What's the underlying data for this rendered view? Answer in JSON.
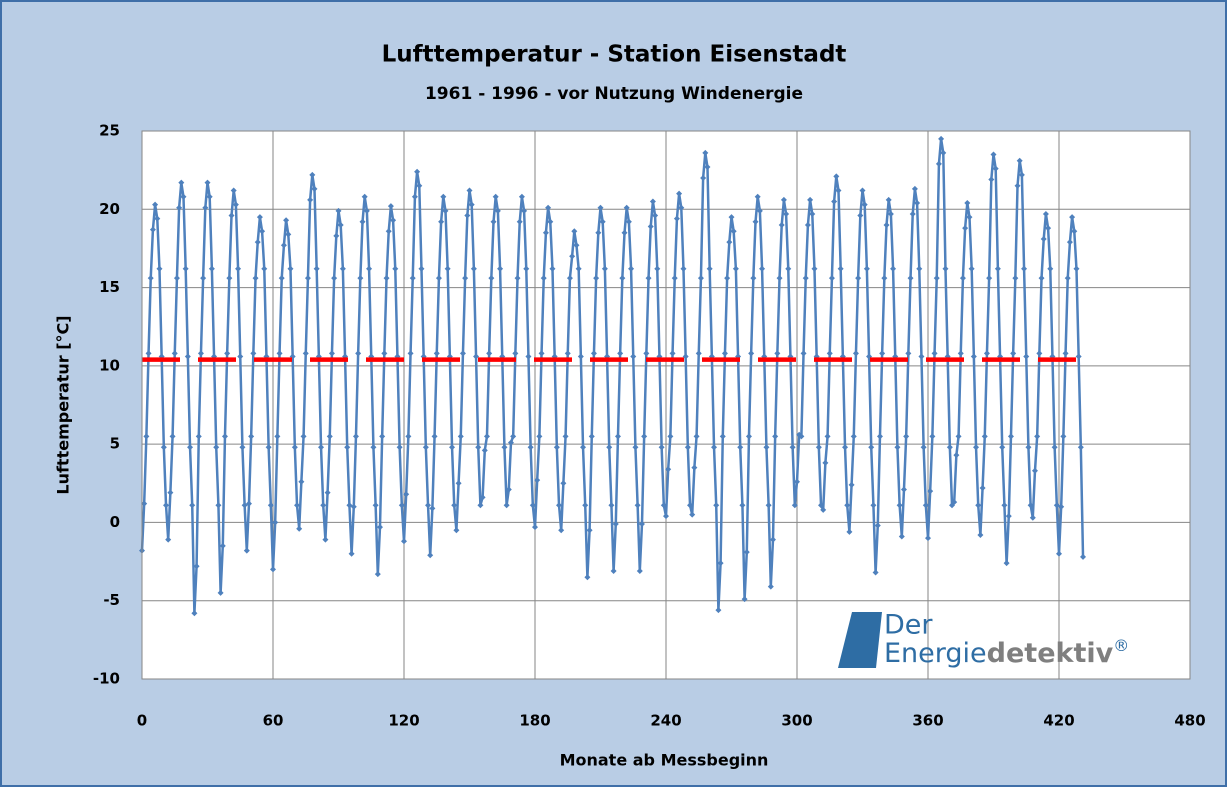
{
  "chart_data": {
    "type": "line",
    "title": "Lufttemperatur - Station Eisenstadt",
    "subtitle": "1961 - 1996 - vor Nutzung  Windenergie",
    "x_label": "Monate ab Messbeginn",
    "y_label": "Lufttemperatur [°C]",
    "xlim": [
      0,
      480
    ],
    "xticks": [
      0,
      60,
      120,
      180,
      240,
      300,
      360,
      420,
      480
    ],
    "ylim": [
      -10,
      25
    ],
    "yticks": [
      -10,
      -5,
      0,
      5,
      10,
      15,
      20,
      25
    ],
    "grid": true,
    "logo": {
      "line1": "Der",
      "word1": "Energie",
      "word2": "detektiv",
      "mark": "®"
    },
    "series": [
      {
        "color": "#4f81bd",
        "x": [
          0,
          1,
          2,
          3,
          4,
          5,
          6,
          7,
          8,
          9,
          10,
          11,
          12,
          13,
          14,
          15,
          16,
          17,
          18,
          19,
          20,
          21,
          22,
          23,
          24,
          25,
          26,
          27,
          28,
          29,
          30,
          31,
          32,
          33,
          34,
          35,
          36,
          37,
          38,
          39,
          40,
          41,
          42,
          43,
          44,
          45,
          46,
          47,
          48,
          49,
          50,
          51,
          52,
          53,
          54,
          55,
          56,
          57,
          58,
          59,
          60,
          61,
          62,
          63,
          64,
          65,
          66,
          67,
          68,
          69,
          70,
          71,
          72,
          73,
          74,
          75,
          76,
          77,
          78,
          79,
          80,
          81,
          82,
          83,
          84,
          85,
          86,
          87,
          88,
          89,
          90,
          91,
          92,
          93,
          94,
          95,
          96,
          97,
          98,
          99,
          100,
          101,
          102,
          103,
          104,
          105,
          106,
          107,
          108,
          109,
          110,
          111,
          112,
          113,
          114,
          115,
          116,
          117,
          118,
          119,
          120,
          121,
          122,
          123,
          124,
          125,
          126,
          127,
          128,
          129,
          130,
          131,
          132,
          133,
          134,
          135,
          136,
          137,
          138,
          139,
          140,
          141,
          142,
          143,
          144,
          145,
          146,
          147,
          148,
          149,
          150,
          151,
          152,
          153,
          154,
          155,
          156,
          157,
          158,
          159,
          160,
          161,
          162,
          163,
          164,
          165,
          166,
          167,
          168,
          169,
          170,
          171,
          172,
          173,
          174,
          175,
          176,
          177,
          178,
          179,
          180,
          181,
          182,
          183,
          184,
          185,
          186,
          187,
          188,
          189,
          190,
          191,
          192,
          193,
          194,
          195,
          196,
          197,
          198,
          199,
          200,
          201,
          202,
          203,
          204,
          205,
          206,
          207,
          208,
          209,
          210,
          211,
          212,
          213,
          214,
          215,
          216,
          217,
          218,
          219,
          220,
          221,
          222,
          223,
          224,
          225,
          226,
          227,
          228,
          229,
          230,
          231,
          232,
          233,
          234,
          235,
          236,
          237,
          238,
          239,
          240,
          241,
          242,
          243,
          244,
          245,
          246,
          247,
          248,
          249,
          250,
          251,
          252,
          253,
          254,
          255,
          256,
          257,
          258,
          259,
          260,
          261,
          262,
          263,
          264,
          265,
          266,
          267,
          268,
          269,
          270,
          271,
          272,
          273,
          274,
          275,
          276,
          277,
          278,
          279,
          280,
          281,
          282,
          283,
          284,
          285,
          286,
          287,
          288,
          289,
          290,
          291,
          292,
          293,
          294,
          295,
          296,
          297,
          298,
          299,
          300,
          301,
          302,
          303,
          304,
          305,
          306,
          307,
          308,
          309,
          310,
          311,
          312,
          313,
          314,
          315,
          316,
          317,
          318,
          319,
          320,
          321,
          322,
          323,
          324,
          325,
          326,
          327,
          328,
          329,
          330,
          331,
          332,
          333,
          334,
          335,
          336,
          337,
          338,
          339,
          340,
          341,
          342,
          343,
          344,
          345,
          346,
          347,
          348,
          349,
          350,
          351,
          352,
          353,
          354,
          355,
          356,
          357,
          358,
          359,
          360,
          361,
          362,
          363,
          364,
          365,
          366,
          367,
          368,
          369,
          370,
          371,
          372,
          373,
          374,
          375,
          376,
          377,
          378,
          379,
          380,
          381,
          382,
          383,
          384,
          385,
          386,
          387,
          388,
          389,
          390,
          391,
          392,
          393,
          394,
          395,
          396,
          397,
          398,
          399,
          400,
          401,
          402,
          403,
          404,
          405,
          406,
          407,
          408,
          409,
          410,
          411,
          412,
          413,
          414,
          415,
          416,
          417,
          418,
          419,
          420,
          421,
          422,
          423,
          424,
          425,
          426,
          427,
          428,
          429,
          430,
          431
        ],
        "values": [
          -1.8,
          1.2,
          5.5,
          10.8,
          15.6,
          18.7,
          20.3,
          19.4,
          16.2,
          10.6,
          4.8,
          1.1,
          -1.1,
          1.9,
          5.5,
          10.8,
          15.6,
          20.1,
          21.7,
          20.8,
          16.2,
          10.6,
          4.8,
          1.1,
          -5.8,
          -2.8,
          5.5,
          10.8,
          15.6,
          20.1,
          21.7,
          20.8,
          16.2,
          10.6,
          4.8,
          1.1,
          -4.5,
          -1.5,
          5.5,
          10.8,
          15.6,
          19.6,
          21.2,
          20.3,
          16.2,
          10.6,
          4.8,
          1.1,
          -1.8,
          1.2,
          5.5,
          10.8,
          15.6,
          17.9,
          19.5,
          18.6,
          16.2,
          10.6,
          4.8,
          1.1,
          -3.0,
          0.0,
          5.5,
          10.8,
          15.6,
          17.7,
          19.3,
          18.4,
          16.2,
          10.6,
          4.8,
          1.1,
          -0.4,
          2.6,
          5.5,
          10.8,
          15.6,
          20.6,
          22.2,
          21.3,
          16.2,
          10.6,
          4.8,
          1.1,
          -1.1,
          1.9,
          5.5,
          10.8,
          15.6,
          18.3,
          19.9,
          19.0,
          16.2,
          10.6,
          4.8,
          1.1,
          -2.0,
          1.0,
          5.5,
          10.8,
          15.6,
          19.2,
          20.8,
          19.9,
          16.2,
          10.6,
          4.8,
          1.1,
          -3.3,
          -0.3,
          5.5,
          10.8,
          15.6,
          18.6,
          20.2,
          19.3,
          16.2,
          10.6,
          4.8,
          1.1,
          -1.2,
          1.8,
          5.5,
          10.8,
          15.6,
          20.8,
          22.4,
          21.5,
          16.2,
          10.6,
          4.8,
          1.1,
          -2.1,
          0.9,
          5.5,
          10.8,
          15.6,
          19.2,
          20.8,
          19.9,
          16.2,
          10.6,
          4.8,
          1.1,
          -0.5,
          2.5,
          5.5,
          10.8,
          15.6,
          19.6,
          21.2,
          20.3,
          16.2,
          10.6,
          4.8,
          1.1,
          1.6,
          4.6,
          5.5,
          10.8,
          15.6,
          19.2,
          20.8,
          19.9,
          16.2,
          10.6,
          4.8,
          1.1,
          2.1,
          5.1,
          5.5,
          10.8,
          15.6,
          19.2,
          20.8,
          19.9,
          16.2,
          10.6,
          4.8,
          1.1,
          -0.3,
          2.7,
          5.5,
          10.8,
          15.6,
          18.5,
          20.1,
          19.2,
          16.2,
          10.6,
          4.8,
          1.1,
          -0.5,
          2.5,
          5.5,
          10.8,
          15.6,
          17.0,
          18.6,
          17.7,
          16.2,
          10.6,
          4.8,
          1.1,
          -3.5,
          -0.5,
          5.5,
          10.8,
          15.6,
          18.5,
          20.1,
          19.2,
          16.2,
          10.6,
          4.8,
          1.1,
          -3.1,
          -0.1,
          5.5,
          10.8,
          15.6,
          18.5,
          20.1,
          19.2,
          16.2,
          10.6,
          4.8,
          1.1,
          -3.1,
          -0.1,
          5.5,
          10.8,
          15.6,
          18.9,
          20.5,
          19.6,
          16.2,
          10.6,
          4.8,
          1.1,
          0.4,
          3.4,
          5.5,
          10.8,
          15.6,
          19.4,
          21.0,
          20.1,
          16.2,
          10.6,
          4.8,
          1.1,
          0.5,
          3.5,
          5.5,
          10.8,
          15.6,
          22.0,
          23.6,
          22.7,
          16.2,
          10.6,
          4.8,
          1.1,
          -5.6,
          -2.6,
          5.5,
          10.8,
          15.6,
          17.9,
          19.5,
          18.6,
          16.2,
          10.6,
          4.8,
          1.1,
          -4.9,
          -1.9,
          5.5,
          10.8,
          15.6,
          19.2,
          20.8,
          19.9,
          16.2,
          10.6,
          4.8,
          1.1,
          -4.1,
          -1.1,
          5.5,
          10.8,
          15.6,
          19.0,
          20.6,
          19.7,
          16.2,
          10.6,
          4.8,
          1.1,
          2.6,
          5.6,
          5.5,
          10.8,
          15.6,
          19.0,
          20.6,
          19.7,
          16.2,
          10.6,
          4.8,
          1.1,
          0.8,
          3.8,
          5.5,
          10.8,
          15.6,
          20.5,
          22.1,
          21.2,
          16.2,
          10.6,
          4.8,
          1.1,
          -0.6,
          2.4,
          5.5,
          10.8,
          15.6,
          19.6,
          21.2,
          20.3,
          16.2,
          10.6,
          4.8,
          1.1,
          -3.2,
          -0.2,
          5.5,
          10.8,
          15.6,
          19.0,
          20.6,
          19.7,
          16.2,
          10.6,
          4.8,
          1.1,
          -0.9,
          2.1,
          5.5,
          10.8,
          15.6,
          19.7,
          21.3,
          20.4,
          16.2,
          10.6,
          4.8,
          1.1,
          -1.0,
          2.0,
          5.5,
          10.8,
          15.6,
          22.9,
          24.5,
          23.6,
          16.2,
          10.6,
          4.8,
          1.1,
          1.3,
          4.3,
          5.5,
          10.8,
          15.6,
          18.8,
          20.4,
          19.5,
          16.2,
          10.6,
          4.8,
          1.1,
          -0.8,
          2.2,
          5.5,
          10.8,
          15.6,
          21.9,
          23.5,
          22.6,
          16.2,
          10.6,
          4.8,
          1.1,
          -2.6,
          0.4,
          5.5,
          10.8,
          15.6,
          21.5,
          23.1,
          22.2,
          16.2,
          10.6,
          4.8,
          1.1,
          0.3,
          3.3,
          5.5,
          10.8,
          15.6,
          18.1,
          19.7,
          18.8,
          16.2,
          10.6,
          4.8,
          1.1,
          -2.0,
          1.0,
          5.5,
          10.8,
          15.6,
          17.9,
          19.5,
          18.6,
          16.2,
          10.6,
          4.8,
          -2.2
        ]
      },
      {
        "color": "#ff0000",
        "dashed": true,
        "x": [
          0,
          432
        ],
        "values": [
          10.4,
          10.4
        ]
      }
    ]
  }
}
